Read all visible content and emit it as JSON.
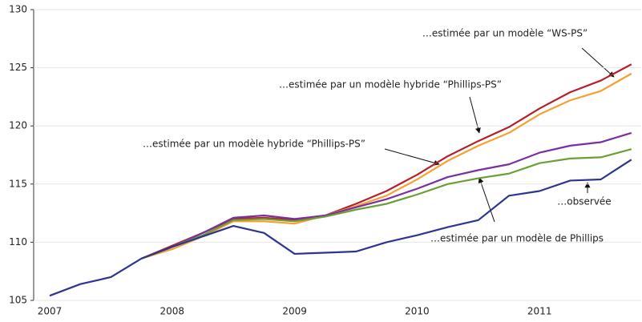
{
  "chart_data": {
    "type": "line",
    "categories": [
      "2007",
      null,
      null,
      null,
      "2008",
      null,
      null,
      null,
      "2009",
      null,
      null,
      null,
      "2010",
      null,
      null,
      null,
      "2011",
      null,
      null,
      null
    ],
    "ylim": [
      105,
      130
    ],
    "yticks": [
      105,
      110,
      115,
      120,
      125,
      130
    ],
    "series": [
      {
        "name": "…estimée par un modèle “WS-PS”",
        "color": "#b3202c",
        "values": [
          null,
          null,
          null,
          108.6,
          109.7,
          110.8,
          112.0,
          112.1,
          111.9,
          112.3,
          113.3,
          114.4,
          115.8,
          117.4,
          118.7,
          119.9,
          121.5,
          122.9,
          123.9,
          125.3
        ]
      },
      {
        "name": "…estimée par un modèle hybride “Phillips-PS”",
        "color": "#f5a031",
        "values": [
          null,
          null,
          null,
          108.6,
          109.4,
          110.5,
          111.8,
          111.8,
          111.6,
          112.3,
          113.1,
          114.0,
          115.4,
          117.0,
          118.3,
          119.4,
          121.0,
          122.2,
          123.0,
          124.5
        ]
      },
      {
        "name": "…estimée par un modèle hybride “Phillips-PS”",
        "color": "#7b2f9e",
        "values": [
          null,
          null,
          null,
          108.6,
          109.6,
          110.8,
          112.1,
          112.3,
          112.0,
          112.3,
          113.0,
          113.7,
          114.6,
          115.6,
          116.2,
          116.7,
          117.7,
          118.3,
          118.6,
          119.4
        ]
      },
      {
        "name": "…estimée par un modèle de Phillips",
        "color": "#6a9f35",
        "values": [
          null,
          null,
          null,
          108.6,
          109.6,
          110.6,
          111.9,
          112.0,
          111.8,
          112.2,
          112.8,
          113.3,
          114.1,
          115.0,
          115.5,
          115.9,
          116.8,
          117.2,
          117.3,
          118.0
        ]
      },
      {
        "name": "…observée",
        "color": "#2d3590",
        "values": [
          105.4,
          106.4,
          107.0,
          108.6,
          109.6,
          110.5,
          111.4,
          110.8,
          109.0,
          109.1,
          109.2,
          110.0,
          110.6,
          111.3,
          111.9,
          114.0,
          114.4,
          115.3,
          115.4,
          117.1
        ]
      }
    ]
  }
}
